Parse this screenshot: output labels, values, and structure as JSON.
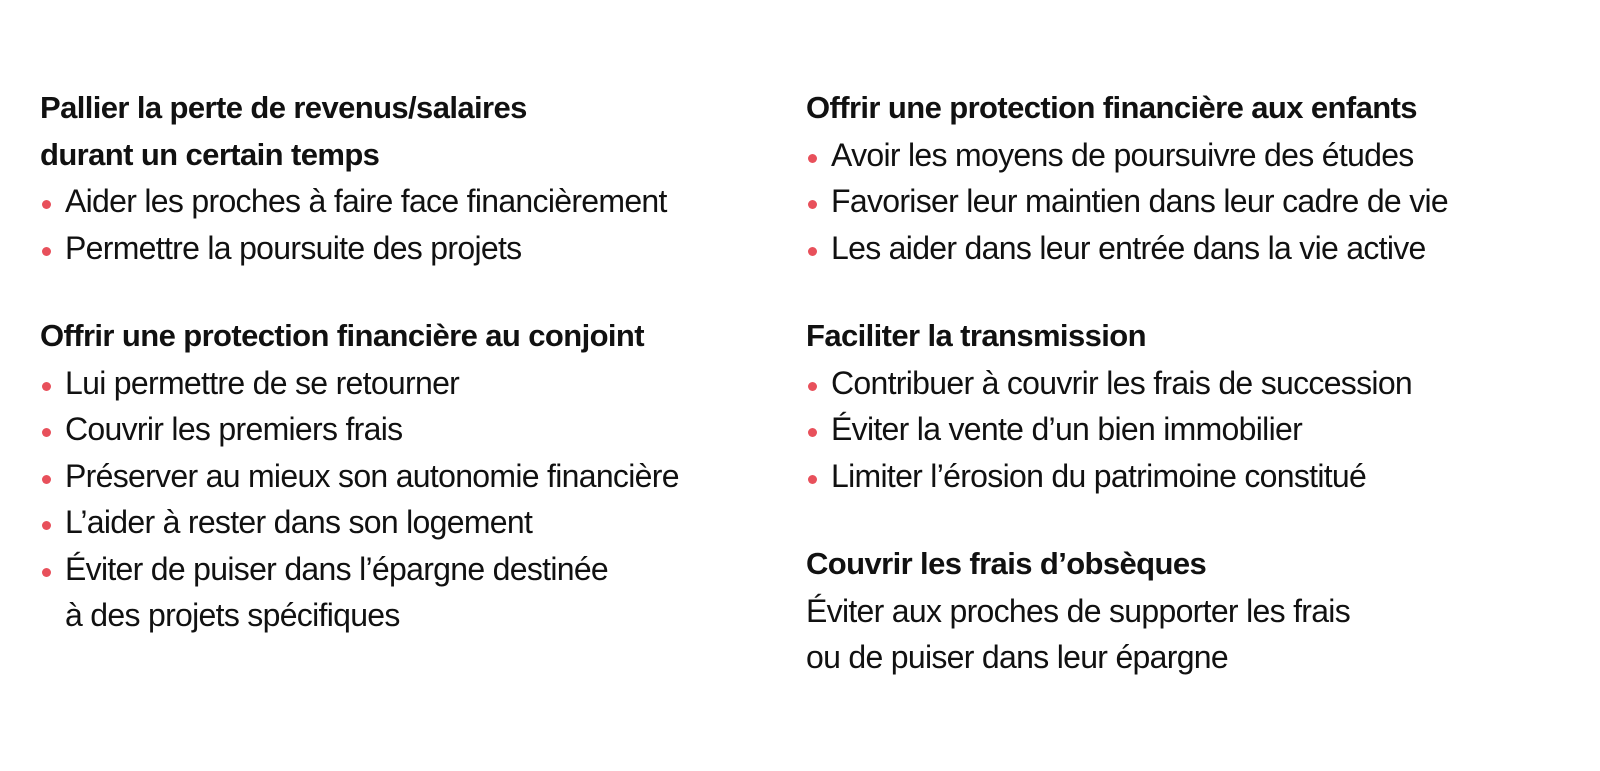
{
  "accent_color": "#e8505b",
  "left": [
    {
      "title": [
        "Pallier la perte de revenus/salaires",
        "durant un certain temps"
      ],
      "items": [
        [
          "Aider les proches à faire face financièrement"
        ],
        [
          "Permettre la poursuite des projets"
        ]
      ]
    },
    {
      "title": [
        "Offrir une protection financière au conjoint"
      ],
      "items": [
        [
          "Lui permettre de se retourner"
        ],
        [
          "Couvrir les premiers frais"
        ],
        [
          "Préserver au mieux son autonomie financière"
        ],
        [
          "L’aider à rester dans son logement"
        ],
        [
          "Éviter de puiser dans l’épargne destinée",
          "à des projets spécifiques"
        ]
      ]
    }
  ],
  "right": [
    {
      "title": [
        "Offrir une protection financière aux enfants"
      ],
      "items": [
        [
          "Avoir les moyens de poursuivre des études"
        ],
        [
          "Favoriser leur maintien dans leur cadre de vie"
        ],
        [
          "Les aider dans leur entrée dans la vie active"
        ]
      ]
    },
    {
      "title": [
        "Faciliter la transmission"
      ],
      "items": [
        [
          "Contribuer à couvrir les frais de succession"
        ],
        [
          "Éviter la vente d’un bien immobilier"
        ],
        [
          "Limiter l’érosion du patrimoine constitué"
        ]
      ]
    },
    {
      "title": [
        "Couvrir les frais d’obsèques"
      ],
      "text": [
        "Éviter aux proches de supporter les frais",
        "ou de puiser dans leur épargne"
      ]
    }
  ]
}
